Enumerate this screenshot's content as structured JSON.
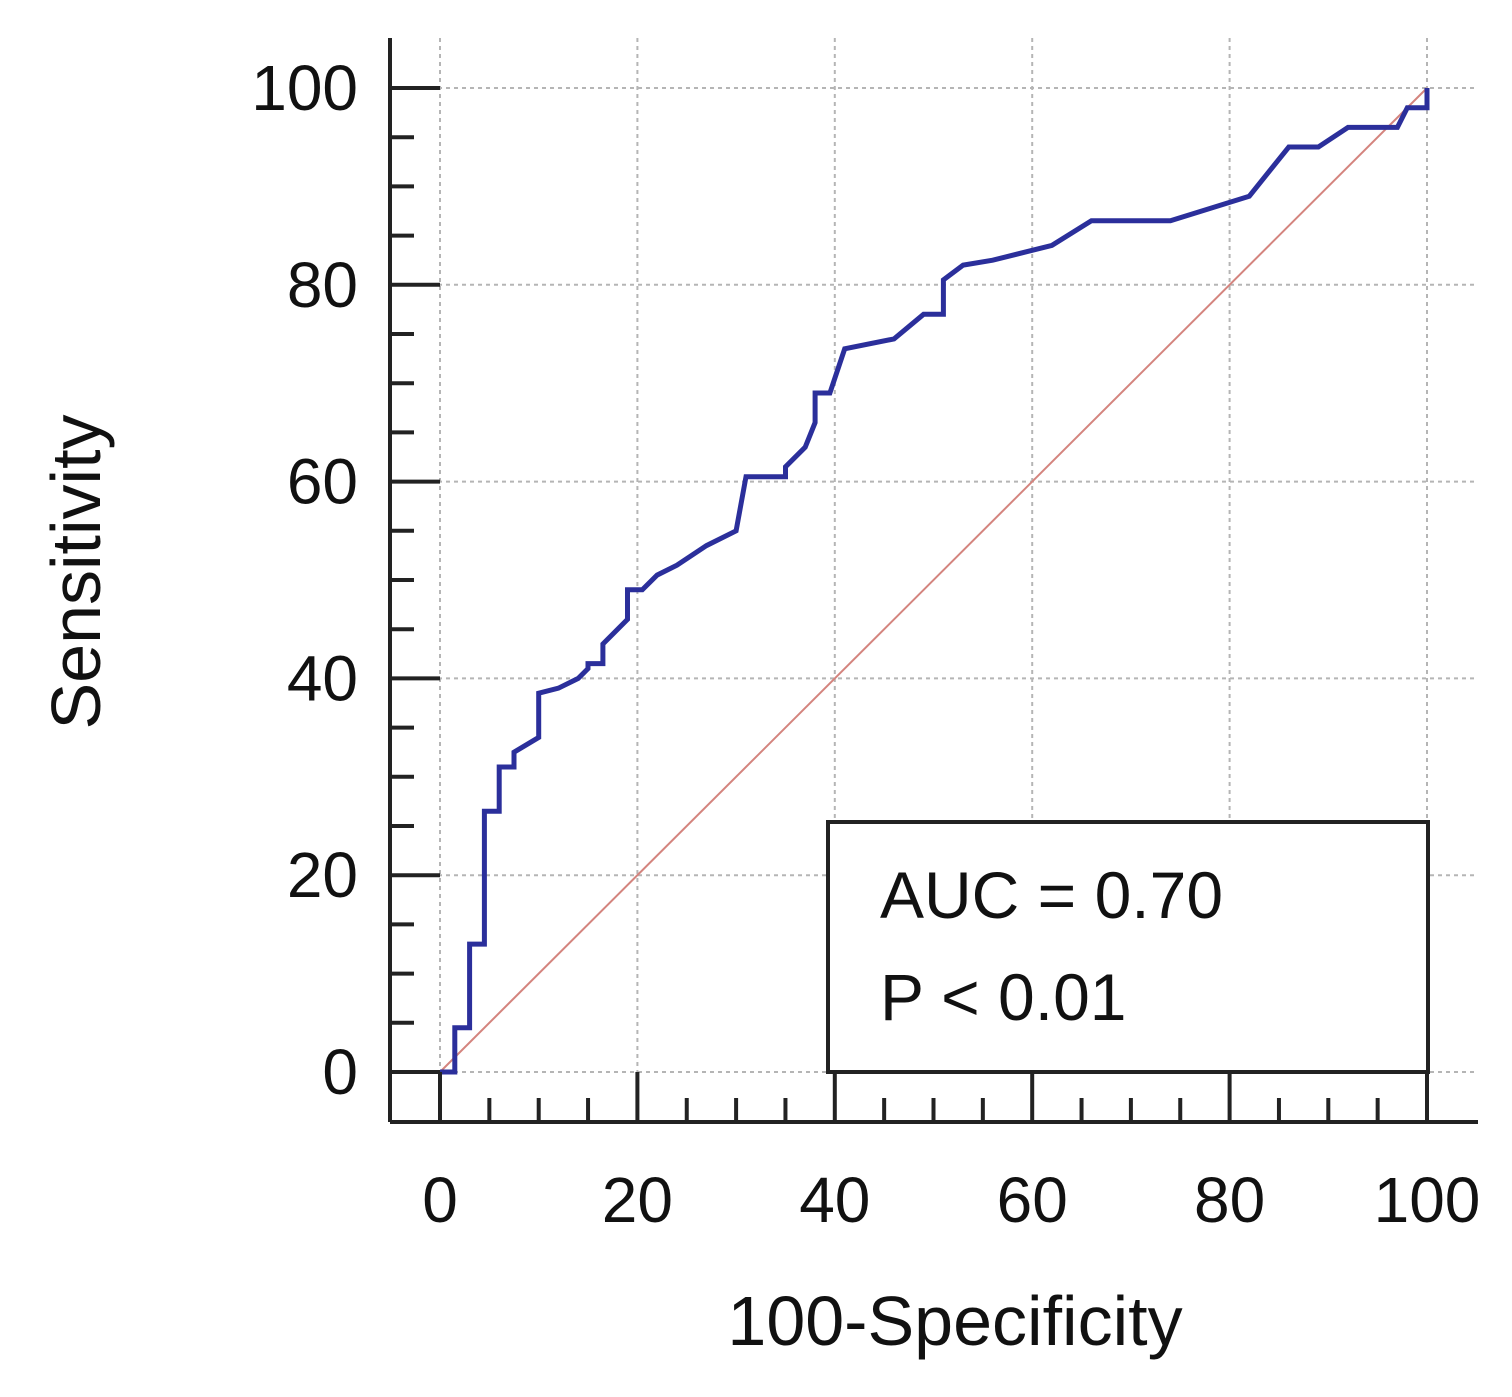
{
  "chart_data": {
    "type": "line",
    "title": "",
    "xlabel": "100-Specificity",
    "ylabel": "Sensitivity",
    "xlim": [
      0,
      100
    ],
    "ylim": [
      0,
      100
    ],
    "xticks": [
      "0",
      "20",
      "40",
      "60",
      "80",
      "100"
    ],
    "yticks": [
      "0",
      "20",
      "40",
      "60",
      "80",
      "100"
    ],
    "minor_tick_step": 5,
    "grid": true,
    "series": [
      {
        "name": "ROC curve",
        "color": "#2b2f9b",
        "points": [
          [
            0,
            0
          ],
          [
            1.5,
            0
          ],
          [
            1.5,
            4.5
          ],
          [
            3,
            4.5
          ],
          [
            3,
            13
          ],
          [
            4.5,
            13
          ],
          [
            4.5,
            26.5
          ],
          [
            6,
            26.5
          ],
          [
            6,
            31
          ],
          [
            7.5,
            31
          ],
          [
            7.5,
            32.5
          ],
          [
            10,
            34
          ],
          [
            10,
            38.5
          ],
          [
            12,
            39
          ],
          [
            14,
            40
          ],
          [
            15,
            41
          ],
          [
            15,
            41.5
          ],
          [
            16.5,
            41.5
          ],
          [
            16.5,
            43.5
          ],
          [
            19,
            46
          ],
          [
            19,
            49
          ],
          [
            20.5,
            49
          ],
          [
            22,
            50.5
          ],
          [
            24,
            51.5
          ],
          [
            27,
            53.5
          ],
          [
            30,
            55
          ],
          [
            31,
            60.5
          ],
          [
            35,
            60.5
          ],
          [
            35,
            61.5
          ],
          [
            37,
            63.5
          ],
          [
            38,
            66
          ],
          [
            38,
            69
          ],
          [
            39.5,
            69
          ],
          [
            41,
            73.5
          ],
          [
            46,
            74.5
          ],
          [
            49,
            77
          ],
          [
            51,
            77
          ],
          [
            51,
            80.5
          ],
          [
            53,
            82
          ],
          [
            56,
            82.5
          ],
          [
            62,
            84
          ],
          [
            66,
            86.5
          ],
          [
            74,
            86.5
          ],
          [
            82,
            89
          ],
          [
            86,
            94
          ],
          [
            89,
            94
          ],
          [
            92,
            96
          ],
          [
            97,
            96
          ],
          [
            98,
            98
          ],
          [
            100,
            98
          ],
          [
            100,
            100
          ]
        ]
      },
      {
        "name": "Reference line",
        "color": "#d4847e",
        "points": [
          [
            0,
            0
          ],
          [
            100,
            100
          ]
        ]
      }
    ],
    "annotations": {
      "auc_text": "AUC = 0.70",
      "p_text": "P < 0.01"
    }
  }
}
